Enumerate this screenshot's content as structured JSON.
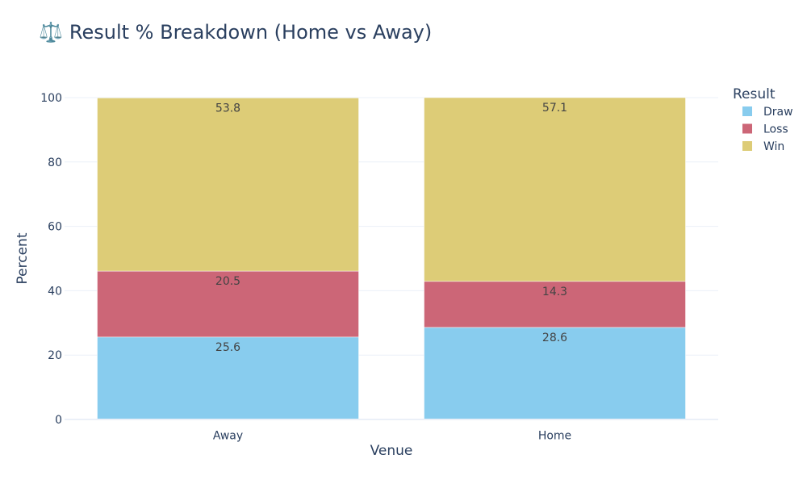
{
  "chart_data": {
    "type": "bar",
    "stacked": true,
    "title": "Result % Breakdown (Home vs Away)",
    "title_icon": "⚖️",
    "xlabel": "Venue",
    "ylabel": "Percent",
    "categories": [
      "Away",
      "Home"
    ],
    "ylim": [
      0,
      100
    ],
    "yticks": [
      0,
      20,
      40,
      60,
      80,
      100
    ],
    "grid": true,
    "legend_title": "Result",
    "legend_position": "top-right",
    "series": [
      {
        "name": "Draw",
        "color": "#88CCEE",
        "values": [
          25.6,
          28.6
        ],
        "labels": [
          "25.6",
          "28.6"
        ]
      },
      {
        "name": "Loss",
        "color": "#CC6677",
        "values": [
          20.5,
          14.3
        ],
        "labels": [
          "20.5",
          "14.3"
        ]
      },
      {
        "name": "Win",
        "color": "#DDCC77",
        "values": [
          53.8,
          57.1
        ],
        "labels": [
          "53.8",
          "57.1"
        ]
      }
    ]
  }
}
